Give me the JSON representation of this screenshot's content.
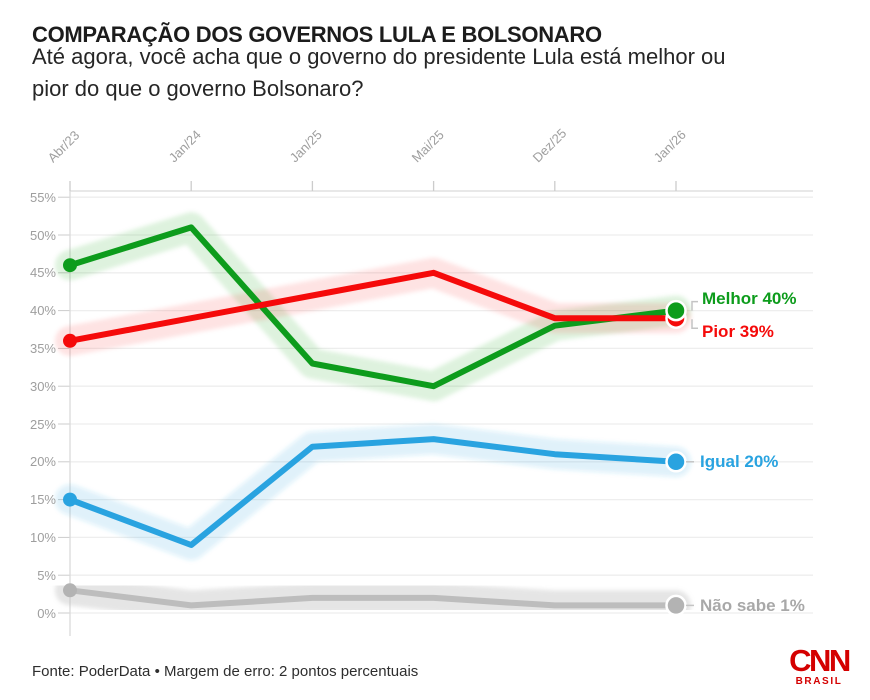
{
  "chart_data": {
    "type": "line",
    "title": "COMPARAÇÃO DOS GOVERNOS LULA E BOLSONARO",
    "subtitle_lines": [
      "Até agora, você acha que o governo do presidente Lula está melhor ou",
      "pior do que o governo Bolsonaro?"
    ],
    "categories": [
      "Abr/23",
      "Jan/24",
      "Jan/25",
      "Mai/25",
      "Dez/25",
      "Jan/26"
    ],
    "series": [
      {
        "name": "Melhor",
        "color": "#0d9c1c",
        "label_color": "#0d9c1c",
        "dot_color": "#0d9c1c",
        "values": [
          46,
          51,
          33,
          30,
          38,
          40
        ],
        "end_label": "Melhor 40%"
      },
      {
        "name": "Pior",
        "color": "#f50a0a",
        "label_color": "#f50a0a",
        "dot_color": "#f50a0a",
        "values": [
          36,
          39,
          42,
          45,
          39,
          39
        ],
        "end_label": "Pior 39%"
      },
      {
        "name": "Igual",
        "color": "#29a3e0",
        "label_color": "#29a3e0",
        "dot_color": "#29a3e0",
        "values": [
          15,
          9,
          22,
          23,
          21,
          20
        ],
        "end_label": "Igual 20%"
      },
      {
        "name": "Não sabe",
        "color": "#bdbdbd",
        "label_color": "#a8a8a8",
        "dot_color": "#b3b3b3",
        "values": [
          3,
          1,
          2,
          2,
          1,
          1
        ],
        "end_label": "Não sabe 1%"
      }
    ],
    "ylim": [
      0,
      55
    ],
    "ytick_step": 5,
    "ytick_labels": [
      "0%",
      "5%",
      "10%",
      "15%",
      "20%",
      "25%",
      "30%",
      "35%",
      "40%",
      "45%",
      "50%",
      "55%"
    ],
    "grid": true,
    "x_axis_position": "top",
    "legend_position": "right-end-labels",
    "margin_of_error_pp": 2
  },
  "footer": {
    "source_text": "Fonte: PoderData • Margem de erro: 2 pontos percentuais",
    "logo_text": "CNN",
    "logo_subtext": "BRASIL"
  },
  "colors": {
    "grid": "#eeeeee",
    "axis_line": "#dadada",
    "tick": "#cccccc",
    "connector": "#c4c4c4",
    "axis_text": "#9e9e9e",
    "title_text": "#1c1c1c",
    "body_text": "#262626",
    "logo_red": "#d40000"
  }
}
